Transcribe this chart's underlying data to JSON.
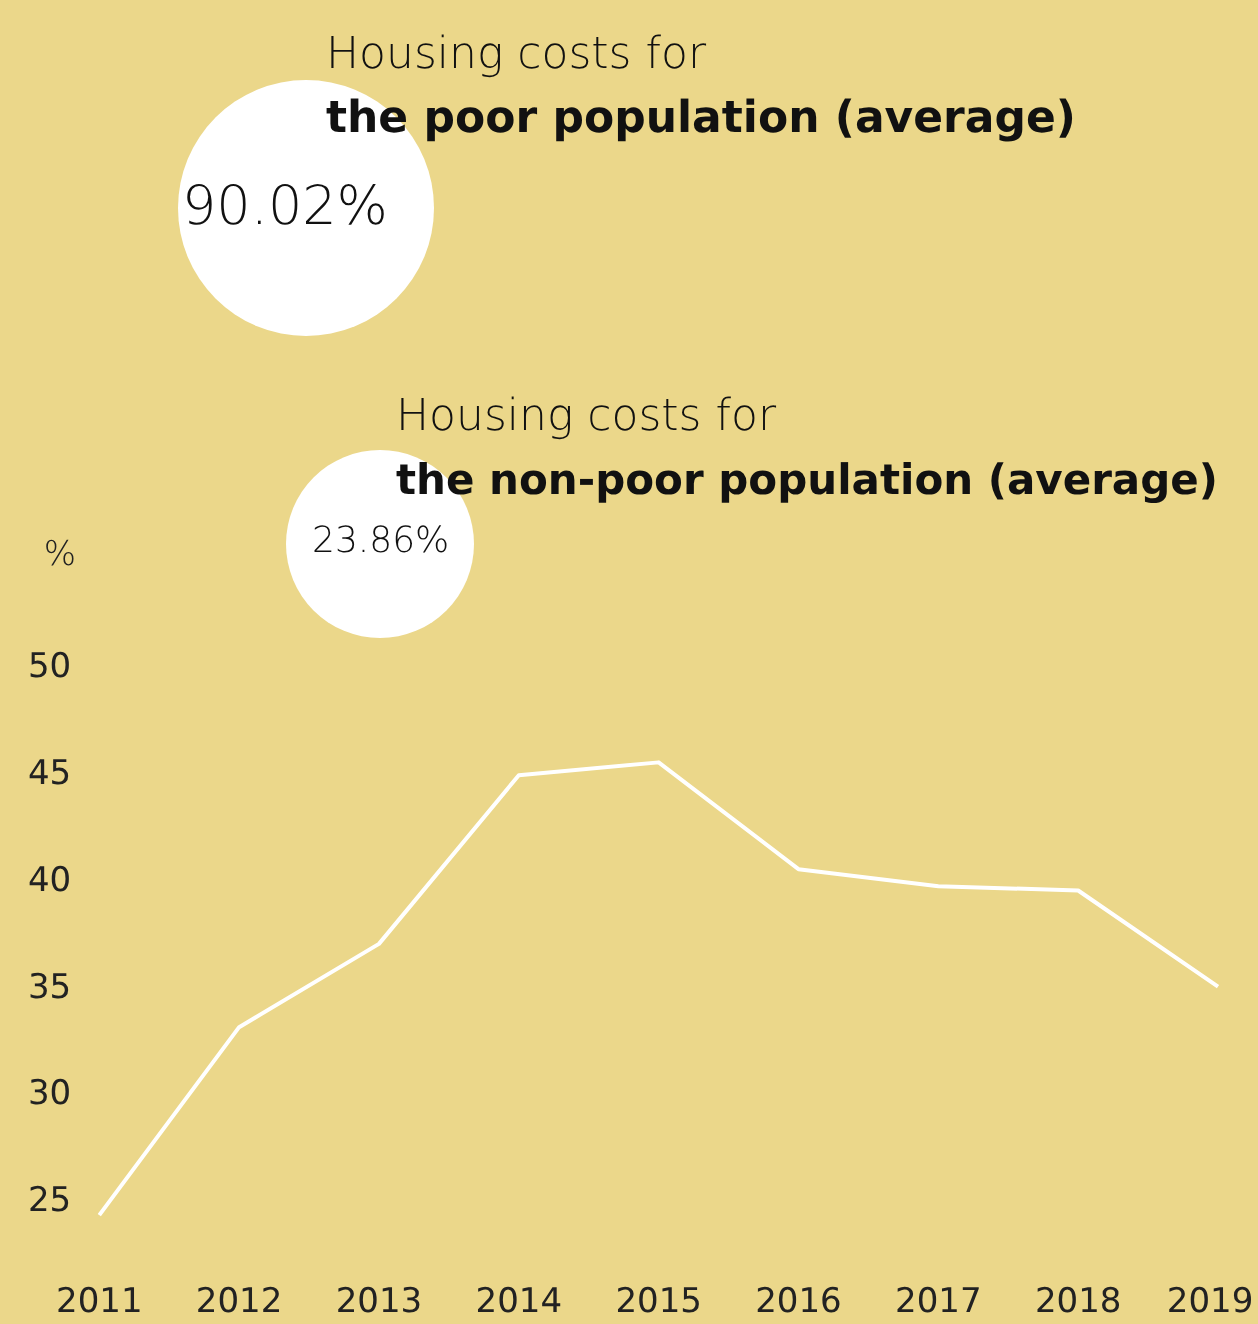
{
  "chart_data": {
    "type": "line",
    "ylabel": "%",
    "categories": [
      "2011",
      "2012",
      "2013",
      "2014",
      "2015",
      "2016",
      "2017",
      "2018",
      "2019"
    ],
    "series": [
      {
        "color": "#ffffff",
        "values": [
          24.4,
          33.2,
          37.1,
          45.0,
          45.6,
          40.6,
          39.8,
          39.6,
          35.1
        ]
      }
    ],
    "ylim": [
      19.3,
      81.3
    ],
    "yticks": [
      25,
      30,
      35,
      40,
      45,
      50
    ],
    "grid": false,
    "legend": false,
    "marker": "none",
    "line_style": "solid",
    "annotations": [
      "Housing costs for",
      "the poor population (average)",
      "90.02%",
      "Housing costs for",
      "the non-poor population (average)",
      "23.86%"
    ]
  }
}
